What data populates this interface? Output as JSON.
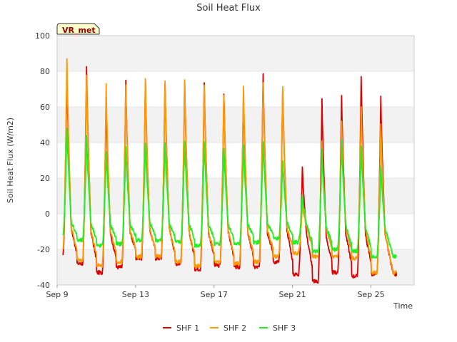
{
  "chart_data": {
    "type": "line",
    "title": "Soil Heat Flux",
    "xlabel": "Time",
    "ylabel": "Soil Heat Flux (W/m2)",
    "badge": "VR_met",
    "ylim": [
      -40,
      100
    ],
    "yticks": [
      -40,
      -20,
      0,
      20,
      40,
      60,
      80,
      100
    ],
    "xlim_days": [
      9,
      27.2
    ],
    "xticks": [
      {
        "day": 9,
        "label": "Sep 9"
      },
      {
        "day": 13,
        "label": "Sep 13"
      },
      {
        "day": 17,
        "label": "Sep 17"
      },
      {
        "day": 21,
        "label": "Sep 21"
      },
      {
        "day": 25,
        "label": "Sep 25"
      }
    ],
    "shaded_bands": [
      [
        80,
        100
      ],
      [
        40,
        60
      ],
      [
        0,
        20
      ],
      [
        -40,
        -20
      ]
    ],
    "day_peak_days": [
      9,
      10,
      11,
      12,
      13,
      14,
      15,
      16,
      17,
      18,
      19,
      20,
      21,
      22,
      23,
      24,
      25,
      26
    ],
    "series": [
      {
        "name": "SHF 1",
        "color": "#dd0000",
        "start_day": 9.3,
        "end_day": 26.3,
        "peaks": [
          80,
          83,
          65,
          74,
          74,
          74,
          74,
          74,
          68,
          68,
          79,
          70,
          26,
          64,
          67,
          78,
          65
        ],
        "troughs": [
          -24,
          -28,
          -33,
          -30,
          -25,
          -25,
          -28,
          -31,
          -29,
          -30,
          -30,
          -27,
          -34,
          -38,
          -33,
          -35,
          -34
        ]
      },
      {
        "name": "SHF 2",
        "color": "#ff9900",
        "start_day": 9.3,
        "end_day": 26.3,
        "peaks": [
          88,
          78,
          72,
          72,
          75,
          75,
          75,
          72,
          67,
          72,
          73,
          72,
          6,
          40,
          52,
          60,
          51
        ],
        "troughs": [
          -21,
          -26,
          -29,
          -27,
          -24,
          -24,
          -27,
          -29,
          -27,
          -28,
          -27,
          -24,
          -22,
          -24,
          -24,
          -25,
          -33
        ]
      },
      {
        "name": "SHF 3",
        "color": "#22ee22",
        "start_day": 9.3,
        "end_day": 26.3,
        "peaks": [
          49,
          44,
          35,
          38,
          40,
          40,
          40,
          40,
          37,
          38,
          41,
          30,
          10,
          35,
          41,
          37,
          27
        ],
        "troughs": [
          -13,
          -15,
          -18,
          -17,
          -15,
          -15,
          -16,
          -18,
          -17,
          -17,
          -16,
          -14,
          -16,
          -21,
          -20,
          -21,
          -24
        ]
      }
    ],
    "legend": {
      "placement": "bottom-center",
      "entries": [
        "SHF 1",
        "SHF 2",
        "SHF 3"
      ]
    }
  }
}
